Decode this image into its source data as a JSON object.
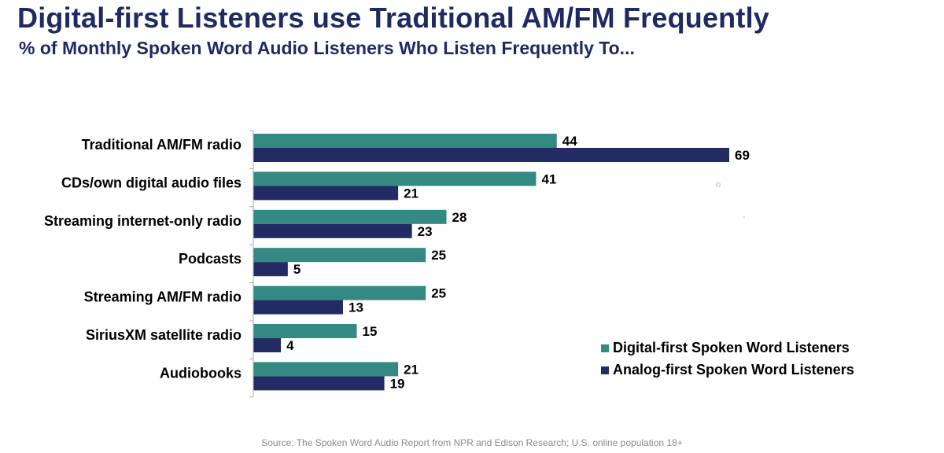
{
  "title": "Digital-first Listeners use Traditional AM/FM Frequently",
  "subtitle": "% of Monthly Spoken Word Audio Listeners Who Listen Frequently To...",
  "source": "Source: The Spoken Word Audio Report from NPR and Edison Research; U.S. online population 18+",
  "colors": {
    "digital": "#348a82",
    "analog": "#232b64",
    "axis": "#aaaaaa"
  },
  "chart_data": {
    "type": "bar",
    "orientation": "horizontal",
    "categories": [
      "Traditional AM/FM radio",
      "CDs/own digital audio files",
      "Streaming internet-only radio",
      "Podcasts",
      "Streaming AM/FM radio",
      "SiriusXM satellite radio",
      "Audiobooks"
    ],
    "series": [
      {
        "name": "Digital-first Spoken Word Listeners",
        "values": [
          44,
          41,
          28,
          25,
          25,
          15,
          21
        ]
      },
      {
        "name": "Analog-first Spoken Word Listeners",
        "values": [
          69,
          21,
          23,
          5,
          13,
          4,
          19
        ]
      }
    ],
    "xlim": [
      0,
      69
    ],
    "grid": false,
    "legend_position": "bottom-right"
  }
}
